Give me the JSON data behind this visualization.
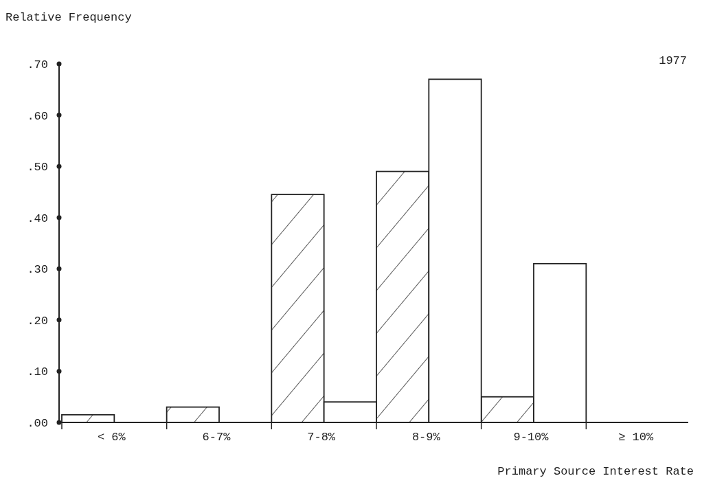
{
  "chart_data": {
    "type": "bar",
    "title": "1977",
    "ylabel": "Relative Frequency",
    "xlabel": "Primary Source Interest Rate",
    "categories": [
      "< 6%",
      "6-7%",
      "7-8%",
      "8-9%",
      "9-10%",
      "≥ 10%"
    ],
    "series": [
      {
        "color": "#222222",
        "values": [
          0.015,
          0.03,
          0.445,
          0.49,
          0.05,
          0
        ]
      },
      {
        "color": "#ffffff",
        "values": [
          0,
          0,
          0.04,
          0.67,
          0.31,
          0
        ]
      }
    ],
    "ylim": [
      0,
      0.7
    ],
    "yticks": [
      {
        "value": 0,
        "label": ".00"
      },
      {
        "value": 0.1,
        "label": ".10"
      },
      {
        "value": 0.2,
        "label": ".20"
      },
      {
        "value": 0.3,
        "label": ".30"
      },
      {
        "value": 0.4,
        "label": ".40"
      },
      {
        "value": 0.5,
        "label": ".50"
      },
      {
        "value": 0.6,
        "label": ".60"
      },
      {
        "value": 0.7,
        "label": ".70"
      }
    ],
    "grid": false
  }
}
